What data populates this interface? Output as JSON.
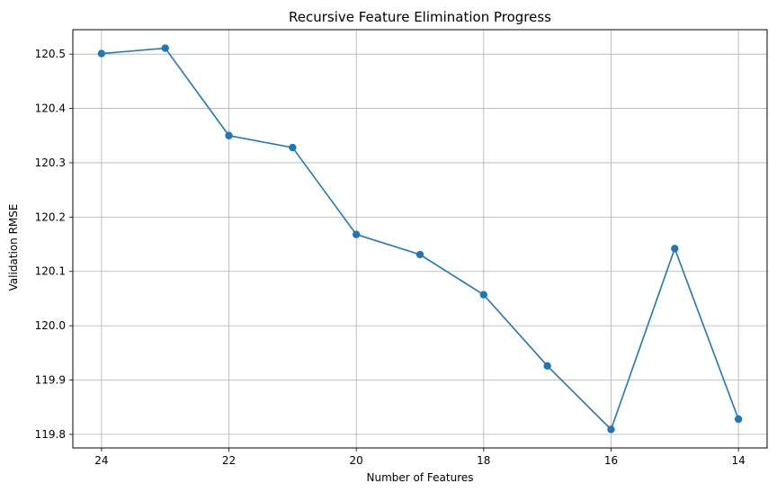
{
  "chart_data": {
    "type": "line",
    "title": "Recursive Feature Elimination Progress",
    "xlabel": "Number of Features",
    "ylabel": "Validation RMSE",
    "x_inverted": true,
    "xlim": [
      24.45,
      13.55
    ],
    "ylim": [
      119.775,
      120.545
    ],
    "xticks": [
      24,
      22,
      20,
      18,
      16,
      14
    ],
    "yticks": [
      119.8,
      119.9,
      120.0,
      120.1,
      120.2,
      120.3,
      120.4,
      120.5
    ],
    "ytick_labels": [
      "119.8",
      "119.9",
      "120.0",
      "120.1",
      "120.2",
      "120.3",
      "120.4",
      "120.5"
    ],
    "grid": true,
    "color": "#1f77b4",
    "series": [
      {
        "x": [
          24,
          23,
          22,
          21,
          20,
          19,
          18,
          17,
          16,
          15,
          14
        ],
        "y": [
          120.501,
          120.511,
          120.35,
          120.328,
          120.168,
          120.131,
          120.057,
          119.926,
          119.809,
          120.142,
          119.828
        ]
      }
    ]
  }
}
